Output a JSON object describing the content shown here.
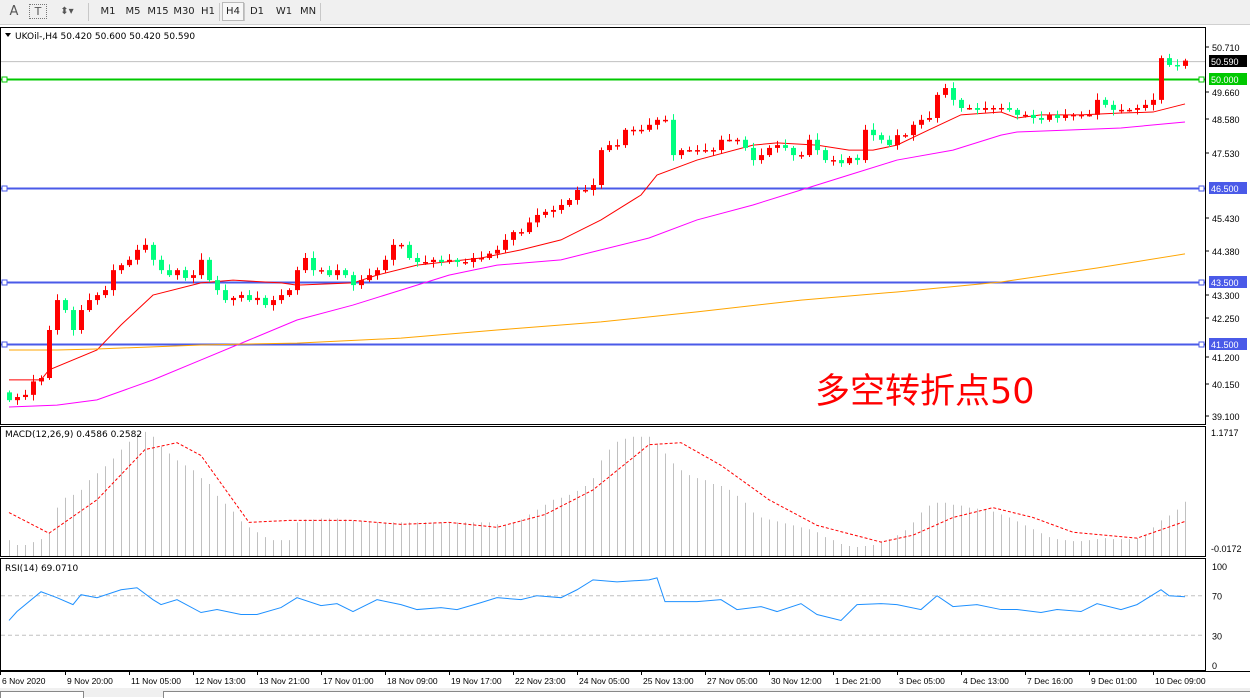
{
  "toolbar": {
    "text_tool": "A",
    "textlabel_tool": "T",
    "timeframes": [
      "M1",
      "M5",
      "M15",
      "M30",
      "H1",
      "H4",
      "D1",
      "W1",
      "MN"
    ],
    "selected_timeframe": "H4"
  },
  "chart_header": {
    "symbol_info": "UKOil-,H4  50.420 50.600 50.420 50.590"
  },
  "annotation": {
    "text": "多空转折点50",
    "color": "#ff0000"
  },
  "colors": {
    "bull_candle": "#ff0000",
    "bear_candle": "#00ff7f",
    "ma_fast": "#ff0000",
    "ma_mid": "#ff00ff",
    "ma_slow": "#ffa500",
    "level_green": "#00c800",
    "level_blue": "#4a5ae8",
    "macd_hist": "#c0c0c0",
    "macd_signal": "#ff0000",
    "rsi": "#1e90ff"
  },
  "chart_data": [
    {
      "type": "candlestick",
      "symbol": "UKOil-",
      "timeframe": "H4",
      "price_axis_labels": [
        "50.710",
        "49.660",
        "48.580",
        "47.530",
        "45.430",
        "44.380",
        "43.300",
        "42.250",
        "41.200",
        "40.150",
        "39.100"
      ],
      "ylim": [
        39.07,
        51.6
      ],
      "current_price": "50.590",
      "horizontal_levels": [
        {
          "price": 50.0,
          "label": "50.000",
          "color": "#00c800"
        },
        {
          "price": 46.5,
          "label": "46.500",
          "color": "#4a5ae8"
        },
        {
          "price": 43.5,
          "label": "43.500",
          "color": "#4a5ae8"
        },
        {
          "price": 41.5,
          "label": "41.500",
          "color": "#4a5ae8"
        }
      ],
      "first_open": 39.95,
      "closes": [
        39.7,
        39.8,
        39.87,
        40.3,
        40.41,
        41.95,
        42.91,
        42.59,
        41.95,
        42.59,
        42.91,
        43.07,
        43.23,
        43.87,
        44.03,
        44.2,
        44.52,
        44.68,
        44.2,
        43.87,
        43.71,
        43.87,
        43.62,
        43.71,
        44.2,
        43.55,
        43.23,
        42.91,
        42.98,
        43.07,
        42.91,
        42.98,
        42.75,
        42.91,
        43.07,
        43.23,
        43.87,
        44.26,
        43.87,
        43.87,
        43.71,
        43.87,
        43.71,
        43.39,
        43.55,
        43.71,
        43.87,
        44.2,
        44.68,
        44.68,
        44.26,
        44.13,
        44.13,
        44.2,
        44.13,
        44.2,
        44.13,
        44.13,
        44.26,
        44.26,
        44.4,
        44.52,
        44.84,
        45.09,
        45.09,
        45.4,
        45.64,
        45.74,
        45.8,
        45.96,
        46.12,
        46.44,
        46.44,
        46.6,
        47.72,
        47.88,
        47.88,
        48.37,
        48.37,
        48.37,
        48.53,
        48.69,
        48.69,
        47.56,
        47.72,
        47.72,
        47.72,
        47.72,
        47.72,
        48.05,
        48.05,
        48.05,
        47.79,
        47.4,
        47.56,
        47.79,
        47.88,
        47.79,
        47.56,
        47.56,
        48.05,
        47.72,
        47.4,
        47.4,
        47.3,
        47.47,
        47.4,
        48.37,
        48.2,
        48.05,
        47.88,
        48.2,
        48.2,
        48.53,
        48.69,
        48.75,
        49.49,
        49.71,
        49.33,
        49.07,
        49.07,
        49.01,
        49.07,
        49.07,
        49.07,
        49.01,
        48.85,
        48.85,
        48.75,
        48.69,
        48.85,
        48.75,
        48.85,
        48.85,
        48.85,
        48.85,
        49.33,
        49.17,
        49.01,
        49.01,
        49.01,
        49.07,
        49.17,
        49.33,
        50.67,
        50.45,
        50.42,
        50.59
      ],
      "moving_averages": [
        {
          "color": "#ff0000",
          "points": [
            [
              0,
              40.35
            ],
            [
              4,
              40.35
            ],
            [
              5,
              40.67
            ],
            [
              11,
              41.31
            ],
            [
              14,
              42.11
            ],
            [
              18,
              43.07
            ],
            [
              24,
              43.46
            ],
            [
              28,
              43.55
            ],
            [
              34,
              43.46
            ],
            [
              36,
              43.39
            ],
            [
              43,
              43.46
            ],
            [
              46,
              43.71
            ],
            [
              51,
              44.03
            ],
            [
              59,
              44.26
            ],
            [
              64,
              44.52
            ],
            [
              69,
              44.84
            ],
            [
              74,
              45.48
            ],
            [
              79,
              46.28
            ],
            [
              81,
              46.92
            ],
            [
              86,
              47.4
            ],
            [
              93,
              47.88
            ],
            [
              96,
              47.95
            ],
            [
              101,
              47.88
            ],
            [
              105,
              47.72
            ],
            [
              108,
              47.72
            ],
            [
              111,
              47.88
            ],
            [
              115,
              48.37
            ],
            [
              119,
              48.85
            ],
            [
              124,
              48.94
            ],
            [
              126,
              48.75
            ],
            [
              129,
              48.85
            ],
            [
              134,
              48.85
            ],
            [
              139,
              48.91
            ],
            [
              143,
              48.94
            ],
            [
              147,
              49.2
            ]
          ]
        },
        {
          "color": "#ff00ff",
          "points": [
            [
              0,
              39.48
            ],
            [
              6,
              39.54
            ],
            [
              11,
              39.71
            ],
            [
              18,
              40.35
            ],
            [
              24,
              40.99
            ],
            [
              30,
              41.63
            ],
            [
              36,
              42.27
            ],
            [
              43,
              42.75
            ],
            [
              49,
              43.23
            ],
            [
              55,
              43.71
            ],
            [
              61,
              44.03
            ],
            [
              69,
              44.2
            ],
            [
              74,
              44.52
            ],
            [
              80,
              44.9
            ],
            [
              86,
              45.48
            ],
            [
              93,
              45.96
            ],
            [
              99,
              46.44
            ],
            [
              105,
              46.92
            ],
            [
              111,
              47.4
            ],
            [
              118,
              47.72
            ],
            [
              124,
              48.2
            ],
            [
              126,
              48.3
            ],
            [
              133,
              48.37
            ],
            [
              139,
              48.43
            ],
            [
              147,
              48.62
            ]
          ]
        },
        {
          "color": "#ffa500",
          "points": [
            [
              0,
              41.31
            ],
            [
              6,
              41.31
            ],
            [
              11,
              41.34
            ],
            [
              24,
              41.47
            ],
            [
              36,
              41.53
            ],
            [
              49,
              41.69
            ],
            [
              61,
              41.95
            ],
            [
              74,
              42.21
            ],
            [
              86,
              42.53
            ],
            [
              99,
              42.91
            ],
            [
              111,
              43.17
            ],
            [
              124,
              43.49
            ],
            [
              136,
              43.94
            ],
            [
              147,
              44.39
            ]
          ]
        }
      ],
      "time_labels": [
        "6 Nov 2020",
        "9 Nov 20:00",
        "11 Nov 05:00",
        "12 Nov 13:00",
        "13 Nov 21:00",
        "17 Nov 01:00",
        "18 Nov 09:00",
        "19 Nov 17:00",
        "22 Nov 23:00",
        "24 Nov 05:00",
        "25 Nov 13:00",
        "27 Nov 05:00",
        "30 Nov 12:00",
        "1 Dec 21:00",
        "3 Dec 05:00",
        "4 Dec 13:00",
        "7 Dec 16:00",
        "9 Dec 01:00",
        "10 Dec 09:00"
      ]
    },
    {
      "type": "bar",
      "title": "MACD(12,26,9) 0.4586 0.2582",
      "axis_labels": [
        "1.1717",
        "-0.0172"
      ],
      "histogram": [
        0.07,
        0.02,
        0.02,
        0.05,
        0.08,
        0.15,
        0.4,
        0.5,
        0.53,
        0.58,
        0.68,
        0.75,
        0.82,
        0.9,
        0.99,
        1.07,
        1.15,
        1.17,
        1.12,
        1.02,
        0.95,
        0.88,
        0.83,
        0.78,
        0.7,
        0.64,
        0.52,
        0.44,
        0.36,
        0.26,
        0.2,
        0.15,
        0.1,
        0.07,
        0.07,
        0.07,
        0.25,
        0.28,
        0.28,
        0.29,
        0.29,
        0.29,
        0.28,
        0.27,
        0.26,
        0.26,
        0.25,
        0.25,
        0.25,
        0.25,
        0.25,
        0.25,
        0.25,
        0.25,
        0.25,
        0.25,
        0.25,
        0.25,
        0.25,
        0.25,
        0.25,
        0.23,
        0.22,
        0.25,
        0.28,
        0.33,
        0.38,
        0.43,
        0.48,
        0.5,
        0.53,
        0.57,
        0.62,
        0.7,
        0.88,
        0.99,
        1.07,
        1.1,
        1.12,
        1.12,
        1.12,
        1.05,
        0.95,
        0.85,
        0.78,
        0.73,
        0.7,
        0.68,
        0.64,
        0.62,
        0.58,
        0.52,
        0.45,
        0.35,
        0.3,
        0.28,
        0.26,
        0.24,
        0.22,
        0.2,
        0.18,
        0.15,
        0.1,
        0.07,
        0.03,
        0.01,
        0.0,
        0.01,
        0.02,
        0.05,
        0.08,
        0.12,
        0.17,
        0.25,
        0.35,
        0.42,
        0.45,
        0.45,
        0.43,
        0.42,
        0.4,
        0.39,
        0.38,
        0.36,
        0.33,
        0.3,
        0.26,
        0.22,
        0.18,
        0.14,
        0.1,
        0.08,
        0.07,
        0.06,
        0.06,
        0.07,
        0.08,
        0.09,
        0.08,
        0.08,
        0.08,
        0.09,
        0.12,
        0.2,
        0.27,
        0.32,
        0.38,
        0.46
      ],
      "signal": [
        [
          0,
          0.35
        ],
        [
          5,
          0.14
        ],
        [
          11,
          0.48
        ],
        [
          17,
          0.99
        ],
        [
          21,
          1.06
        ],
        [
          24,
          0.93
        ],
        [
          30,
          0.25
        ],
        [
          35,
          0.27
        ],
        [
          43,
          0.27
        ],
        [
          49,
          0.23
        ],
        [
          55,
          0.25
        ],
        [
          61,
          0.2
        ],
        [
          67,
          0.33
        ],
        [
          73,
          0.58
        ],
        [
          80,
          1.04
        ],
        [
          84,
          1.06
        ],
        [
          89,
          0.83
        ],
        [
          95,
          0.48
        ],
        [
          101,
          0.22
        ],
        [
          109,
          0.05
        ],
        [
          113,
          0.12
        ],
        [
          118,
          0.3
        ],
        [
          123,
          0.4
        ],
        [
          128,
          0.3
        ],
        [
          133,
          0.15
        ],
        [
          141,
          0.09
        ],
        [
          147,
          0.26
        ]
      ]
    },
    {
      "type": "line",
      "title": "RSI(14) 69.0710",
      "axis_labels": [
        "100",
        "70",
        "30",
        "0"
      ],
      "levels": [
        70,
        30
      ],
      "points": [
        [
          0,
          45
        ],
        [
          1,
          54
        ],
        [
          4,
          74
        ],
        [
          5,
          71
        ],
        [
          6,
          68
        ],
        [
          8,
          61
        ],
        [
          9,
          71
        ],
        [
          11,
          68
        ],
        [
          14,
          76
        ],
        [
          16,
          78
        ],
        [
          18,
          66
        ],
        [
          19,
          61
        ],
        [
          21,
          66
        ],
        [
          24,
          53
        ],
        [
          26,
          56
        ],
        [
          29,
          51
        ],
        [
          31,
          51
        ],
        [
          34,
          58
        ],
        [
          36,
          68
        ],
        [
          39,
          60
        ],
        [
          41,
          62
        ],
        [
          43,
          54
        ],
        [
          46,
          66
        ],
        [
          49,
          61
        ],
        [
          51,
          56
        ],
        [
          54,
          58
        ],
        [
          56,
          56
        ],
        [
          59,
          63
        ],
        [
          61,
          68
        ],
        [
          64,
          66
        ],
        [
          66,
          70
        ],
        [
          69,
          68
        ],
        [
          71,
          76
        ],
        [
          73,
          86
        ],
        [
          76,
          84
        ],
        [
          80,
          86
        ],
        [
          81,
          88
        ],
        [
          82,
          64
        ],
        [
          86,
          64
        ],
        [
          89,
          66
        ],
        [
          91,
          56
        ],
        [
          94,
          59
        ],
        [
          96,
          54
        ],
        [
          99,
          62
        ],
        [
          101,
          51
        ],
        [
          104,
          45
        ],
        [
          106,
          61
        ],
        [
          109,
          62
        ],
        [
          111,
          61
        ],
        [
          114,
          56
        ],
        [
          116,
          70
        ],
        [
          118,
          59
        ],
        [
          121,
          61
        ],
        [
          124,
          56
        ],
        [
          126,
          56
        ],
        [
          129,
          53
        ],
        [
          131,
          56
        ],
        [
          134,
          54
        ],
        [
          136,
          62
        ],
        [
          139,
          56
        ],
        [
          141,
          61
        ],
        [
          144,
          76
        ],
        [
          145,
          70
        ],
        [
          147,
          69
        ]
      ]
    }
  ]
}
